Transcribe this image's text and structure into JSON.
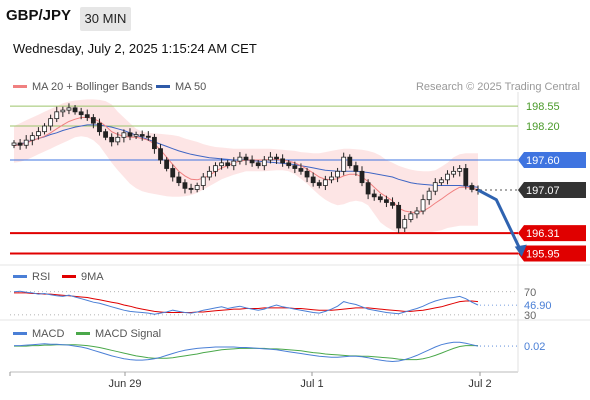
{
  "header": {
    "symbol": "GBP/JPY",
    "timeframe": "30 MIN",
    "datetime": "Wednesday, July 2, 2025 1:15:24 AM CET",
    "credit": "Research © 2025 Trading Central"
  },
  "legend": {
    "ma20_bb": "MA 20 + Bollinger Bands",
    "ma50": "MA 50",
    "rsi": "RSI",
    "rsi_ma": "9MA",
    "macd": "MACD",
    "macd_signal": "MACD Signal"
  },
  "colors": {
    "ma20": "#f08080",
    "ma50": "#3f66c4",
    "bollinger_fill": "#fcdcdc",
    "resistance": "#9cc46a",
    "pivot": "#3f74e0",
    "support": "#e00000",
    "price_label": "#333333",
    "forecast_arrow": "#2f63b0",
    "macd_signal": "#4aa84a",
    "candle": "#222222"
  },
  "chart_data": [
    {
      "type": "candlestick",
      "panel": "price",
      "ylim": [
        195.8,
        198.8
      ],
      "x_ticks": [
        "Jun 29",
        "Jul 1",
        "Jul 2"
      ],
      "close": [
        197.9,
        197.86,
        197.95,
        198.03,
        198.1,
        198.2,
        198.33,
        198.45,
        198.48,
        198.52,
        198.45,
        198.4,
        198.35,
        198.25,
        198.1,
        198.0,
        197.92,
        198.0,
        198.08,
        198.02,
        198.05,
        198.02,
        198.0,
        197.8,
        197.6,
        197.45,
        197.3,
        197.2,
        197.1,
        197.08,
        197.15,
        197.3,
        197.4,
        197.5,
        197.55,
        197.5,
        197.58,
        197.65,
        197.6,
        197.55,
        197.5,
        197.6,
        197.65,
        197.62,
        197.55,
        197.5,
        197.45,
        197.4,
        197.3,
        197.2,
        197.15,
        197.25,
        197.3,
        197.4,
        197.65,
        197.5,
        197.4,
        197.2,
        197.0,
        196.95,
        196.9,
        196.85,
        196.8,
        196.4,
        196.55,
        196.65,
        196.7,
        196.9,
        197.05,
        197.2,
        197.25,
        197.35,
        197.4,
        197.45,
        197.15,
        197.08,
        197.07
      ],
      "ma20": [
        197.85,
        197.87,
        197.9,
        197.94,
        197.98,
        198.02,
        198.08,
        198.15,
        198.22,
        198.28,
        198.32,
        198.35,
        198.35,
        198.33,
        198.28,
        198.2,
        198.1,
        198.05,
        198.02,
        198.0,
        198.0,
        197.98,
        197.95,
        197.88,
        197.78,
        197.65,
        197.52,
        197.4,
        197.32,
        197.26,
        197.25,
        197.28,
        197.33,
        197.4,
        197.46,
        197.5,
        197.55,
        197.58,
        197.6,
        197.6,
        197.6,
        197.6,
        197.61,
        197.61,
        197.6,
        197.58,
        197.55,
        197.5,
        197.44,
        197.37,
        197.3,
        197.26,
        197.25,
        197.27,
        197.32,
        197.35,
        197.35,
        197.3,
        197.22,
        197.12,
        197.02,
        196.95,
        196.88,
        196.75,
        196.7,
        196.68,
        196.67,
        196.7,
        196.76,
        196.84,
        196.91,
        196.99,
        197.06,
        197.12,
        197.12,
        197.1,
        197.08
      ],
      "ma50": [
        197.85,
        197.88,
        197.91,
        197.95,
        197.98,
        198.01,
        198.05,
        198.08,
        198.12,
        198.15,
        198.18,
        198.2,
        198.22,
        198.22,
        198.22,
        198.2,
        198.18,
        198.15,
        198.12,
        198.08,
        198.04,
        198.0,
        197.96,
        197.92,
        197.88,
        197.84,
        197.8,
        197.76,
        197.73,
        197.7,
        197.68,
        197.66,
        197.64,
        197.63,
        197.62,
        197.61,
        197.6,
        197.6,
        197.6,
        197.59,
        197.58,
        197.57,
        197.56,
        197.55,
        197.54,
        197.53,
        197.52,
        197.5,
        197.48,
        197.46,
        197.44,
        197.42,
        197.41,
        197.4,
        197.4,
        197.4,
        197.4,
        197.39,
        197.38,
        197.36,
        197.34,
        197.32,
        197.3,
        197.26,
        197.23,
        197.2,
        197.18,
        197.17,
        197.16,
        197.15,
        197.15,
        197.15,
        197.15,
        197.15,
        197.14,
        197.13,
        197.12
      ],
      "bb_upper": [
        198.2,
        198.25,
        198.3,
        198.35,
        198.4,
        198.45,
        198.5,
        198.55,
        198.6,
        198.63,
        198.65,
        198.66,
        198.67,
        198.67,
        198.66,
        198.64,
        198.58,
        198.45,
        198.35,
        198.25,
        198.15,
        198.1,
        198.08,
        198.07,
        198.06,
        198.05,
        198.04,
        198.02,
        197.98,
        197.95,
        197.92,
        197.88,
        197.85,
        197.83,
        197.82,
        197.81,
        197.8,
        197.8,
        197.8,
        197.8,
        197.8,
        197.8,
        197.8,
        197.79,
        197.78,
        197.77,
        197.76,
        197.74,
        197.73,
        197.72,
        197.72,
        197.74,
        197.76,
        197.78,
        197.8,
        197.8,
        197.79,
        197.78,
        197.76,
        197.73,
        197.68,
        197.6,
        197.55,
        197.5,
        197.46,
        197.43,
        197.41,
        197.4,
        197.4,
        197.42,
        197.48,
        197.55,
        197.65,
        197.7,
        197.72,
        197.72,
        197.72
      ],
      "bb_lower": [
        197.55,
        197.57,
        197.6,
        197.65,
        197.7,
        197.75,
        197.8,
        197.85,
        197.9,
        197.95,
        198.0,
        198.02,
        198.0,
        197.95,
        197.85,
        197.7,
        197.55,
        197.42,
        197.3,
        197.18,
        197.1,
        197.05,
        197.02,
        197.0,
        196.98,
        196.96,
        196.95,
        196.95,
        196.96,
        196.98,
        197.02,
        197.08,
        197.14,
        197.2,
        197.26,
        197.3,
        197.34,
        197.37,
        197.4,
        197.4,
        197.4,
        197.4,
        197.41,
        197.42,
        197.42,
        197.4,
        197.35,
        197.27,
        197.18,
        197.08,
        196.98,
        196.9,
        196.84,
        196.8,
        196.82,
        196.86,
        196.88,
        196.86,
        196.8,
        196.65,
        196.5,
        196.42,
        196.36,
        196.32,
        196.31,
        196.31,
        196.31,
        196.31,
        196.32,
        196.34,
        196.36,
        196.4,
        196.42,
        196.44,
        196.44,
        196.44,
        196.44
      ],
      "levels": [
        {
          "value": 198.55,
          "label": "198.55",
          "kind": "resistance"
        },
        {
          "value": 198.2,
          "label": "198.20",
          "kind": "resistance"
        },
        {
          "value": 197.6,
          "label": "197.60",
          "kind": "pivot"
        },
        {
          "value": 197.07,
          "label": "197.07",
          "kind": "last"
        },
        {
          "value": 196.31,
          "label": "196.31",
          "kind": "support"
        },
        {
          "value": 195.95,
          "label": "195.95",
          "kind": "support"
        }
      ],
      "forecast": [
        [
          76,
          197.07
        ],
        [
          79,
          196.9
        ],
        [
          83,
          196.0
        ]
      ]
    },
    {
      "type": "line",
      "panel": "rsi",
      "ylim": [
        28,
        80
      ],
      "levels": [
        {
          "value": 70,
          "label": "70"
        },
        {
          "value": 30,
          "label": "30"
        }
      ],
      "current": {
        "value": 46.9,
        "label": "46.90"
      },
      "rsi": [
        70,
        71,
        69,
        68,
        66,
        67,
        65,
        63,
        62,
        64,
        61,
        58,
        55,
        52,
        50,
        47,
        44,
        41,
        38,
        36,
        35,
        34,
        33,
        31,
        33,
        35,
        38,
        36,
        34,
        33,
        35,
        38,
        40,
        42,
        44,
        41,
        43,
        45,
        42,
        40,
        38,
        40,
        44,
        47,
        44,
        42,
        40,
        38,
        36,
        34,
        33,
        36,
        40,
        45,
        53,
        50,
        48,
        44,
        40,
        38,
        36,
        34,
        33,
        32,
        35,
        38,
        41,
        45,
        50,
        54,
        57,
        59,
        60,
        62,
        58,
        52,
        47
      ],
      "ma9": [
        68,
        68,
        68,
        67,
        67,
        66,
        66,
        65,
        64,
        63,
        62,
        61,
        60,
        58,
        56,
        54,
        52,
        50,
        47,
        45,
        42,
        40,
        38,
        36,
        35,
        34,
        34,
        34,
        34,
        34,
        35,
        35,
        36,
        37,
        38,
        39,
        40,
        40,
        41,
        41,
        41,
        42,
        42,
        42,
        42,
        42,
        41,
        41,
        40,
        39,
        38,
        38,
        38,
        39,
        40,
        41,
        42,
        42,
        42,
        41,
        40,
        39,
        38,
        37,
        36,
        36,
        37,
        38,
        40,
        42,
        44,
        47,
        50,
        53,
        54,
        54,
        53
      ]
    },
    {
      "type": "line",
      "panel": "macd",
      "ylim": [
        -0.45,
        0.15
      ],
      "current": {
        "value": 0.02,
        "label": "0.02"
      },
      "macd": [
        0.03,
        0.03,
        0.04,
        0.05,
        0.06,
        0.07,
        0.06,
        0.06,
        0.05,
        0.04,
        0.02,
        0.0,
        -0.03,
        -0.07,
        -0.11,
        -0.15,
        -0.19,
        -0.22,
        -0.25,
        -0.27,
        -0.28,
        -0.28,
        -0.27,
        -0.25,
        -0.22,
        -0.18,
        -0.14,
        -0.1,
        -0.07,
        -0.05,
        -0.03,
        -0.02,
        -0.01,
        0.0,
        0.0,
        0.0,
        0.0,
        -0.01,
        -0.01,
        -0.02,
        -0.03,
        -0.04,
        -0.05,
        -0.06,
        -0.08,
        -0.1,
        -0.12,
        -0.14,
        -0.16,
        -0.18,
        -0.2,
        -0.21,
        -0.22,
        -0.22,
        -0.21,
        -0.2,
        -0.2,
        -0.21,
        -0.23,
        -0.26,
        -0.28,
        -0.3,
        -0.31,
        -0.3,
        -0.27,
        -0.23,
        -0.18,
        -0.12,
        -0.06,
        0.0,
        0.05,
        0.08,
        0.1,
        0.1,
        0.08,
        0.05,
        0.02
      ],
      "signal": [
        0.02,
        0.02,
        0.02,
        0.03,
        0.03,
        0.04,
        0.04,
        0.05,
        0.05,
        0.05,
        0.05,
        0.04,
        0.03,
        0.01,
        -0.01,
        -0.04,
        -0.07,
        -0.1,
        -0.13,
        -0.16,
        -0.19,
        -0.21,
        -0.23,
        -0.24,
        -0.24,
        -0.24,
        -0.23,
        -0.21,
        -0.19,
        -0.17,
        -0.15,
        -0.12,
        -0.1,
        -0.08,
        -0.06,
        -0.05,
        -0.04,
        -0.03,
        -0.03,
        -0.03,
        -0.03,
        -0.03,
        -0.04,
        -0.04,
        -0.05,
        -0.06,
        -0.07,
        -0.08,
        -0.1,
        -0.12,
        -0.13,
        -0.15,
        -0.16,
        -0.17,
        -0.18,
        -0.19,
        -0.19,
        -0.2,
        -0.2,
        -0.21,
        -0.22,
        -0.23,
        -0.24,
        -0.26,
        -0.27,
        -0.27,
        -0.27,
        -0.25,
        -0.22,
        -0.18,
        -0.13,
        -0.08,
        -0.03,
        0.01,
        0.03,
        0.03,
        0.03
      ]
    }
  ]
}
